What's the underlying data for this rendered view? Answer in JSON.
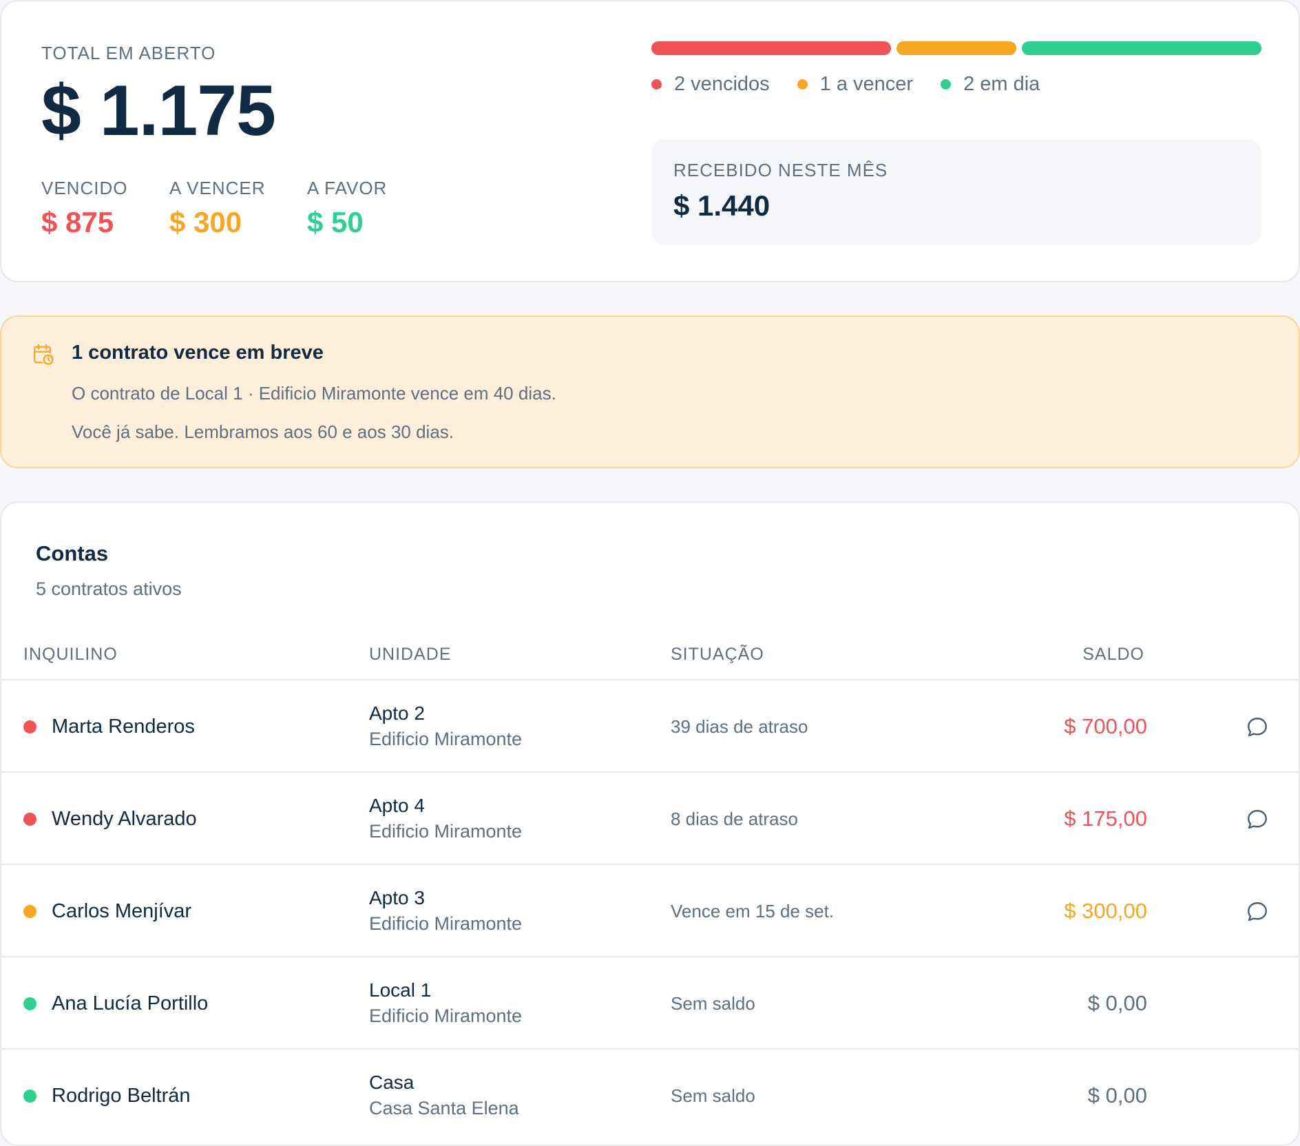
{
  "summary": {
    "total_label": "TOTAL EM ABERTO",
    "total_value": "$ 1.175",
    "overdue_label": "VENCIDO",
    "overdue_value": "$ 875",
    "upcoming_label": "A VENCER",
    "upcoming_value": "$ 300",
    "credit_label": "A FAVOR",
    "credit_value": "$ 50"
  },
  "status_bar": {
    "segments": [
      {
        "count": 2,
        "color": "#ef5358"
      },
      {
        "count": 1,
        "color": "#f5a623"
      },
      {
        "count": 2,
        "color": "#2fd08f"
      }
    ]
  },
  "legend": {
    "overdue": "2 vencidos",
    "upcoming": "1 a vencer",
    "current": "2 em dia"
  },
  "received": {
    "label": "RECEBIDO NESTE MÊS",
    "value": "$ 1.440"
  },
  "alert": {
    "icon": "calendar-clock-icon",
    "title": "1 contrato vence em breve",
    "line1": "O contrato de Local 1 · Edificio Miramonte vence em 40 dias.",
    "line2": "Você já sabe. Lembramos aos 60 e aos 30 dias."
  },
  "accounts": {
    "title": "Contas",
    "subtitle": "5 contratos ativos",
    "columns": {
      "tenant": "INQUILINO",
      "unit": "UNIDADE",
      "status": "SITUAÇÃO",
      "balance": "SALDO"
    },
    "rows": [
      {
        "tenant": "Marta Renderos",
        "unit": "Apto 2",
        "building": "Edificio Miramonte",
        "status": "39 dias de atraso",
        "balance": "$ 700,00",
        "state": "overdue",
        "chat": true
      },
      {
        "tenant": "Wendy Alvarado",
        "unit": "Apto 4",
        "building": "Edificio Miramonte",
        "status": "8 dias de atraso",
        "balance": "$ 175,00",
        "state": "overdue",
        "chat": true
      },
      {
        "tenant": "Carlos Menjívar",
        "unit": "Apto 3",
        "building": "Edificio Miramonte",
        "status": "Vence em 15 de set.",
        "balance": "$ 300,00",
        "state": "upcoming",
        "chat": true
      },
      {
        "tenant": "Ana Lucía Portillo",
        "unit": "Local 1",
        "building": "Edificio Miramonte",
        "status": "Sem saldo",
        "balance": "$ 0,00",
        "state": "current",
        "chat": false
      },
      {
        "tenant": "Rodrigo Beltrán",
        "unit": "Casa",
        "building": "Casa Santa Elena",
        "status": "Sem saldo",
        "balance": "$ 0,00",
        "state": "current",
        "chat": false
      }
    ]
  },
  "colors": {
    "overdue": "#ef5358",
    "upcoming": "#f5a623",
    "current": "#2fd08f",
    "text": "#0f2a42",
    "muted": "#5e6f80"
  }
}
